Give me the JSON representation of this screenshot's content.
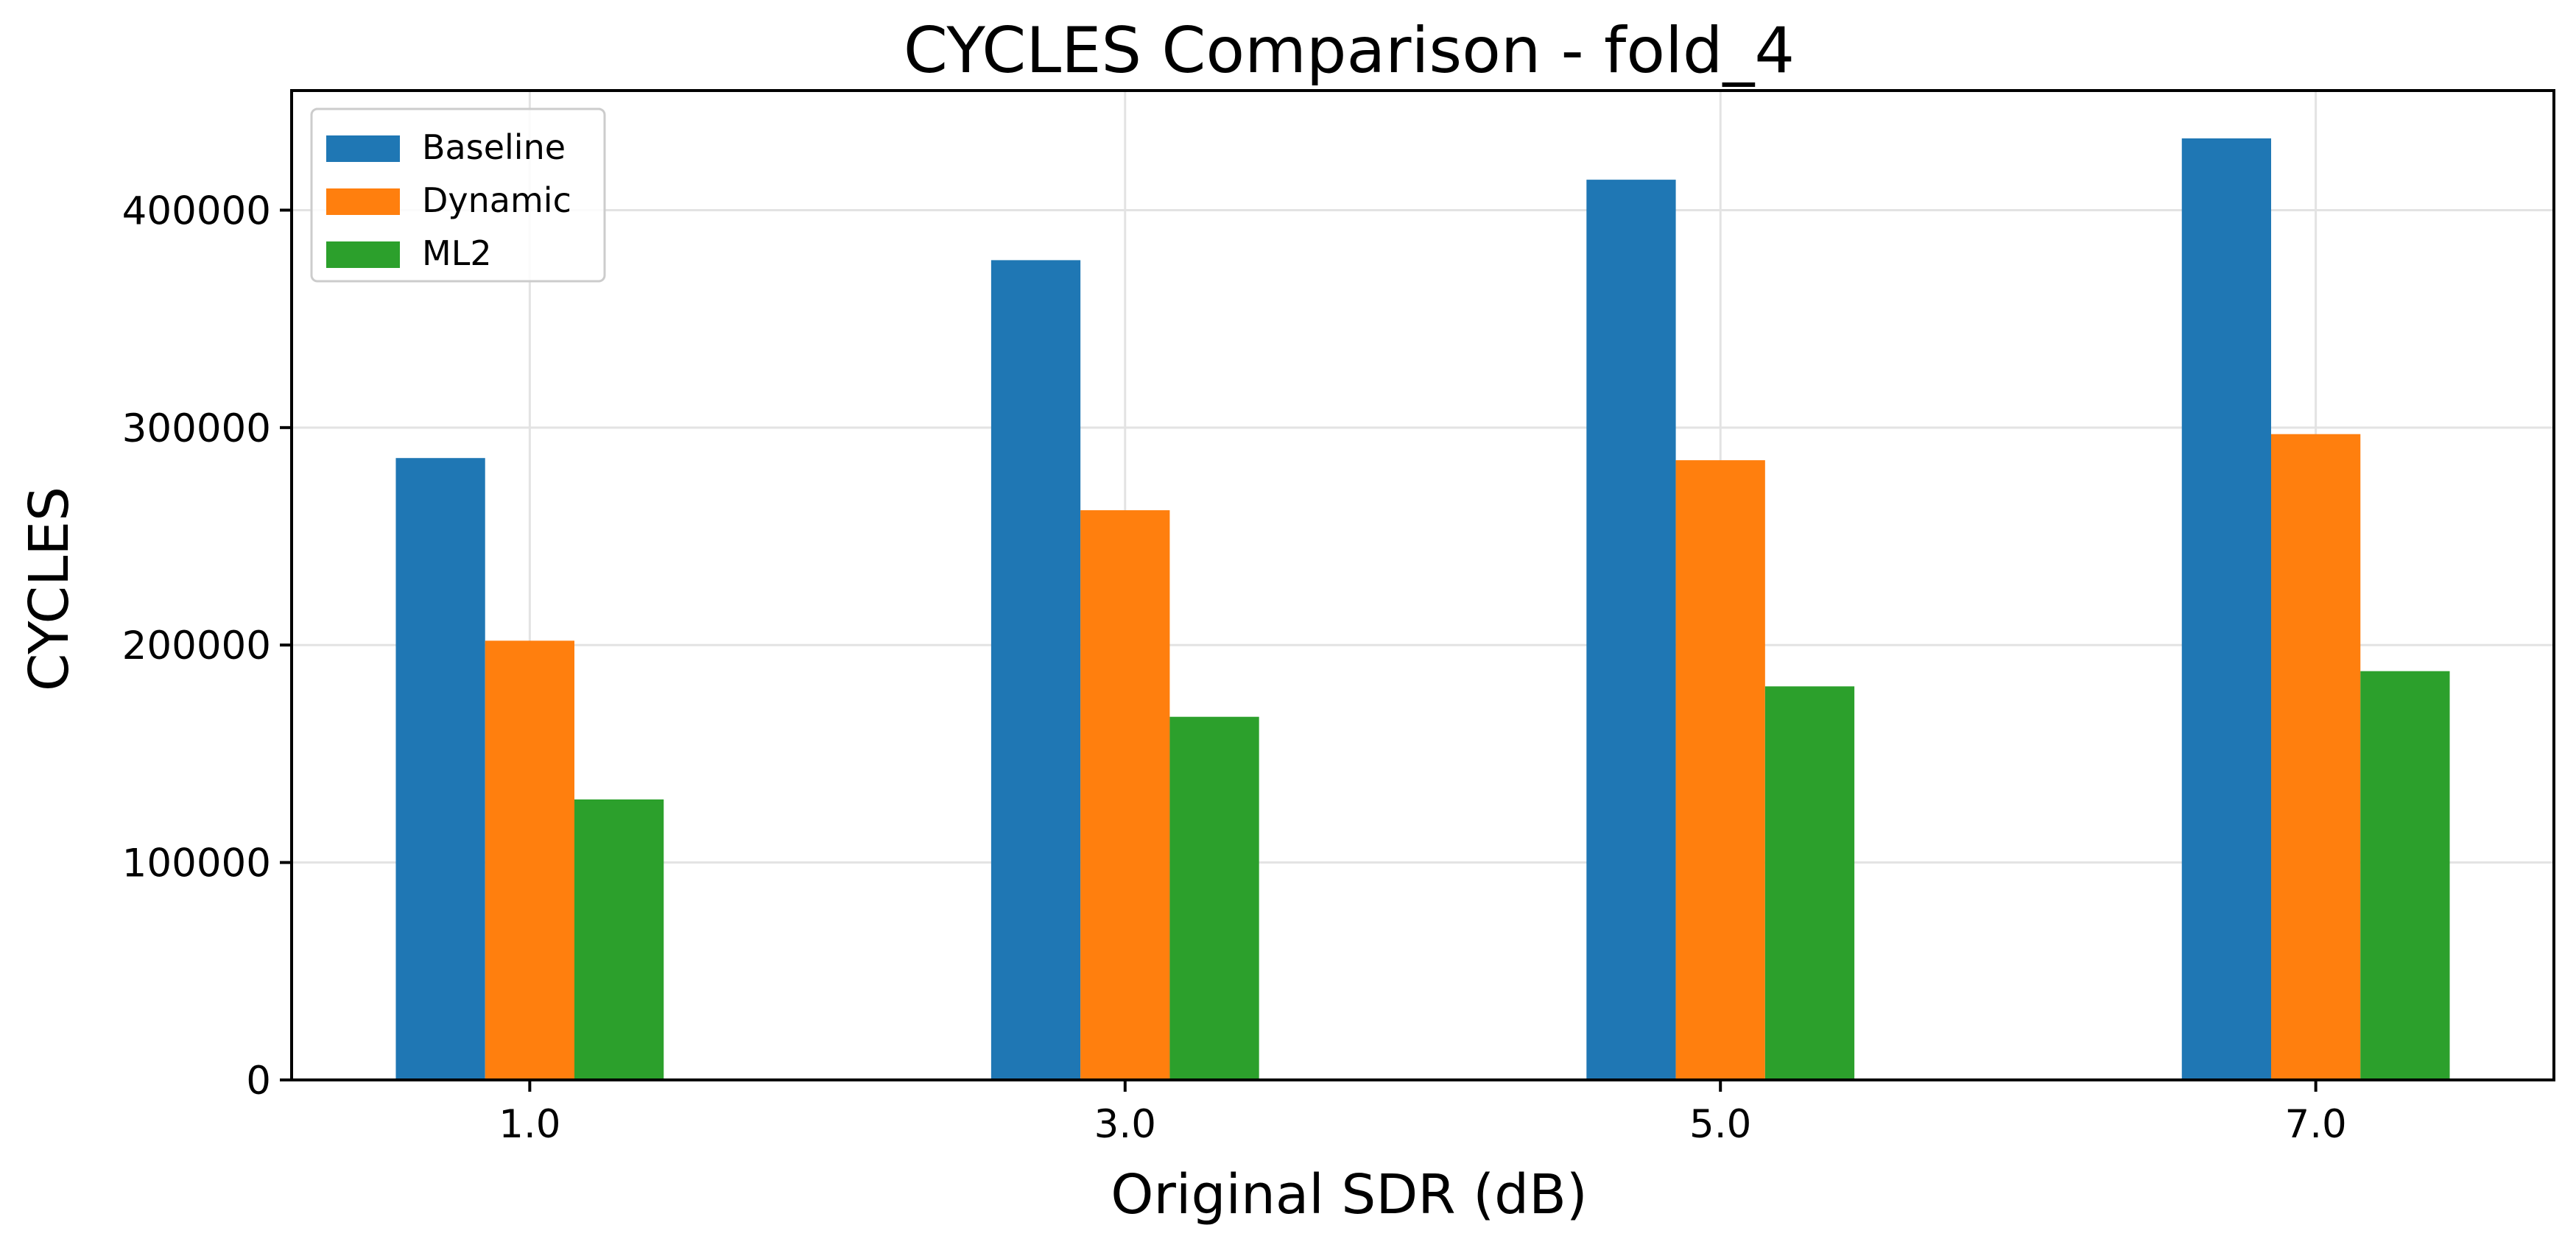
{
  "chart_data": {
    "type": "bar",
    "title": "CYCLES Comparison - fold_4",
    "xlabel": "Original SDR (dB)",
    "ylabel": "CYCLES",
    "categories": [
      "1.0",
      "3.0",
      "5.0",
      "7.0"
    ],
    "x": [
      1.0,
      3.0,
      5.0,
      7.0
    ],
    "xlim": [
      0.2,
      7.8
    ],
    "ylim": [
      0,
      455000
    ],
    "yticks": [
      0,
      100000,
      200000,
      300000,
      400000
    ],
    "ytick_labels": [
      "0",
      "100000",
      "200000",
      "300000",
      "400000"
    ],
    "grid": true,
    "legend_position": "top-left",
    "series": [
      {
        "name": "Baseline",
        "color": "#1f77b4",
        "values": [
          286000,
          377000,
          414000,
          433000
        ]
      },
      {
        "name": "Dynamic",
        "color": "#ff7f0e",
        "values": [
          202000,
          262000,
          285000,
          297000
        ]
      },
      {
        "name": "ML2",
        "color": "#2ca02c",
        "values": [
          129000,
          167000,
          181000,
          188000
        ]
      }
    ]
  }
}
